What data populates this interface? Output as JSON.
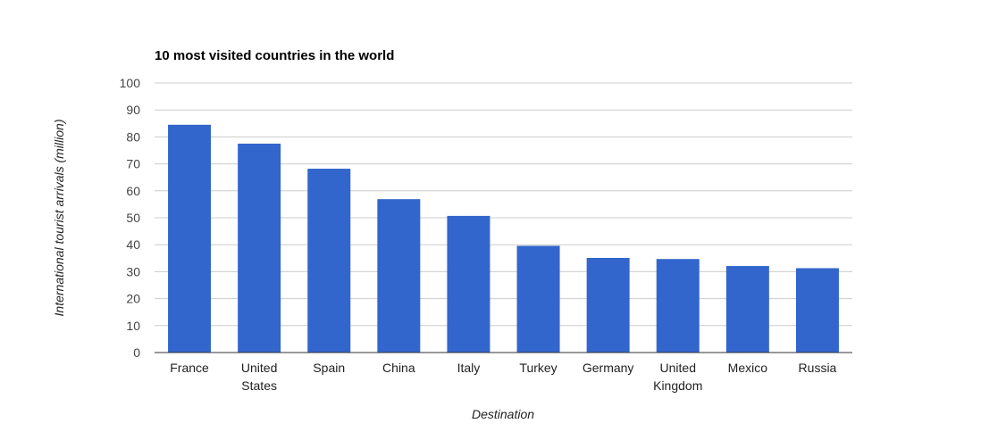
{
  "chart_data": {
    "type": "bar",
    "title": "10 most visited countries in the world",
    "xlabel": "Destination",
    "ylabel": "International tourist arrivals (million)",
    "categories": [
      "France",
      "United States",
      "Spain",
      "China",
      "Italy",
      "Turkey",
      "Germany",
      "United Kingdom",
      "Mexico",
      "Russia"
    ],
    "values": [
      84.5,
      77.5,
      68.2,
      56.9,
      50.7,
      39.6,
      35.1,
      34.7,
      32.1,
      31.3
    ],
    "ylim": [
      0,
      100
    ],
    "yticks": [
      0,
      10,
      20,
      30,
      40,
      50,
      60,
      70,
      80,
      90,
      100
    ],
    "grid": true,
    "bar_color": "#3366cc",
    "legend": "none"
  }
}
